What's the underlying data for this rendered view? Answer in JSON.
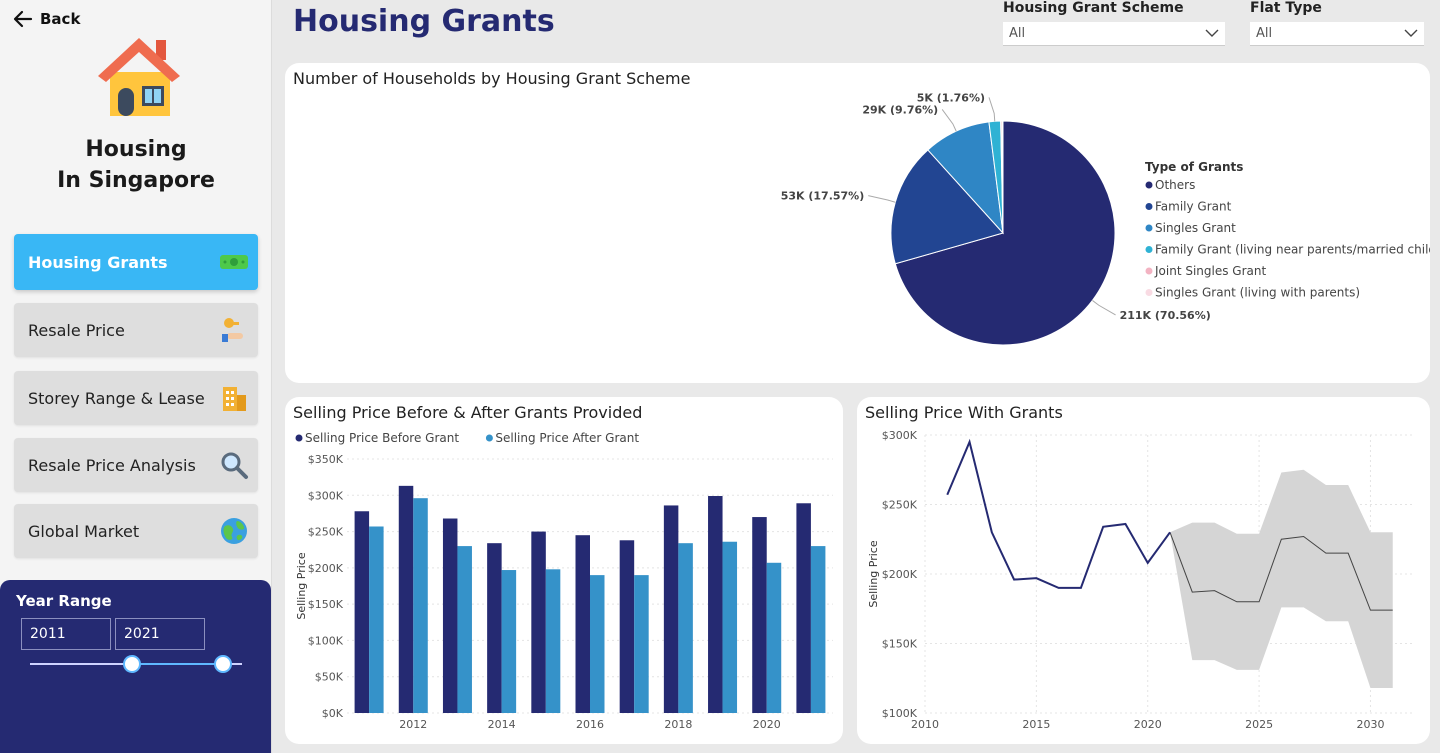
{
  "nav": {
    "back_label": "Back",
    "brand_line1": "Housing",
    "brand_line2": "In Singapore",
    "items": [
      {
        "label": "Housing Grants",
        "icon": "cash-icon"
      },
      {
        "label": "Resale Price",
        "icon": "key-hand-icon"
      },
      {
        "label": "Storey Range & Lease",
        "icon": "building-icon"
      },
      {
        "label": "Resale Price Analysis",
        "icon": "magnifier-icon"
      },
      {
        "label": "Global Market",
        "icon": "globe-icon"
      }
    ]
  },
  "year_range": {
    "title": "Year Range",
    "start": "2011",
    "end": "2021"
  },
  "header": {
    "title": "Housing Grants"
  },
  "filters": [
    {
      "title": "Housing Grant Scheme",
      "value": "All"
    },
    {
      "title": "Flat Type",
      "value": "All"
    }
  ],
  "colors": {
    "navy": "#252a72",
    "mid_blue": "#2e4f9e",
    "light_blue": "#3592c9",
    "accent": "#39b7f5",
    "forecast_band": "#d5d5d5"
  },
  "pie": {
    "title": "Number of Households by Housing Grant Scheme",
    "legend_title": "Type of Grants",
    "chart_data": {
      "type": "pie",
      "slices": [
        {
          "name": "Others",
          "value": 211,
          "label": "211K (70.56%)",
          "color": "#252a72"
        },
        {
          "name": "Family Grant",
          "value": 53,
          "label": "53K (17.57%)",
          "color": "#224592"
        },
        {
          "name": "Singles Grant",
          "value": 29,
          "label": "29K (9.76%)",
          "color": "#2f86c5"
        },
        {
          "name": "Family Grant (living near parents/married child)",
          "value": 5,
          "label": "5K (1.76%)",
          "color": "#2fb2d4"
        },
        {
          "name": "Joint Singles Grant",
          "value": 0.6,
          "label": "",
          "color": "#f3b3c2"
        },
        {
          "name": "Singles Grant (living with parents)",
          "value": 0.4,
          "label": "",
          "color": "#f9dbe3"
        }
      ]
    }
  },
  "bars": {
    "title": "Selling Price Before & After Grants Provided",
    "ylabel": "Selling Price",
    "yticks": [
      "$0K",
      "$50K",
      "$100K",
      "$150K",
      "$200K",
      "$250K",
      "$300K",
      "$350K"
    ],
    "xticks": [
      "2012",
      "2014",
      "2016",
      "2018",
      "2020"
    ],
    "chart_data": {
      "type": "bar",
      "categories": [
        "2011",
        "2012",
        "2013",
        "2014",
        "2015",
        "2016",
        "2017",
        "2018",
        "2019",
        "2020",
        "2021"
      ],
      "series": [
        {
          "name": "Selling Price Before Grant",
          "color": "#252a72",
          "values": [
            278,
            313,
            268,
            234,
            250,
            245,
            238,
            286,
            299,
            270,
            289
          ]
        },
        {
          "name": "Selling Price After Grant",
          "color": "#3592c9",
          "values": [
            257,
            296,
            230,
            197,
            198,
            190,
            190,
            234,
            236,
            207,
            230
          ]
        }
      ],
      "ylim": [
        0,
        350
      ]
    }
  },
  "line": {
    "title": "Selling Price With Grants",
    "ylabel": "Selling Price",
    "yticks": [
      "$100K",
      "$150K",
      "$200K",
      "$250K",
      "$300K"
    ],
    "xticks": [
      "2010",
      "2015",
      "2020",
      "2025",
      "2030"
    ],
    "chart_data": {
      "type": "line",
      "actual": {
        "x": [
          2011,
          2012,
          2013,
          2014,
          2015,
          2016,
          2017,
          2018,
          2019,
          2020,
          2021
        ],
        "y": [
          257,
          295,
          230,
          196,
          197,
          190,
          190,
          234,
          236,
          208,
          230
        ]
      },
      "forecast": {
        "x": [
          2021,
          2022,
          2023,
          2024,
          2025,
          2026,
          2027,
          2028,
          2029,
          2030,
          2031
        ],
        "y": [
          230,
          187,
          188,
          180,
          180,
          225,
          227,
          215,
          215,
          174,
          174
        ],
        "upper": [
          230,
          237,
          237,
          229,
          229,
          273,
          275,
          264,
          264,
          230,
          230
        ],
        "lower": [
          230,
          138,
          138,
          131,
          131,
          176,
          176,
          166,
          166,
          118,
          118
        ]
      },
      "xlim": [
        2010,
        2032
      ],
      "ylim": [
        100,
        300
      ]
    }
  }
}
